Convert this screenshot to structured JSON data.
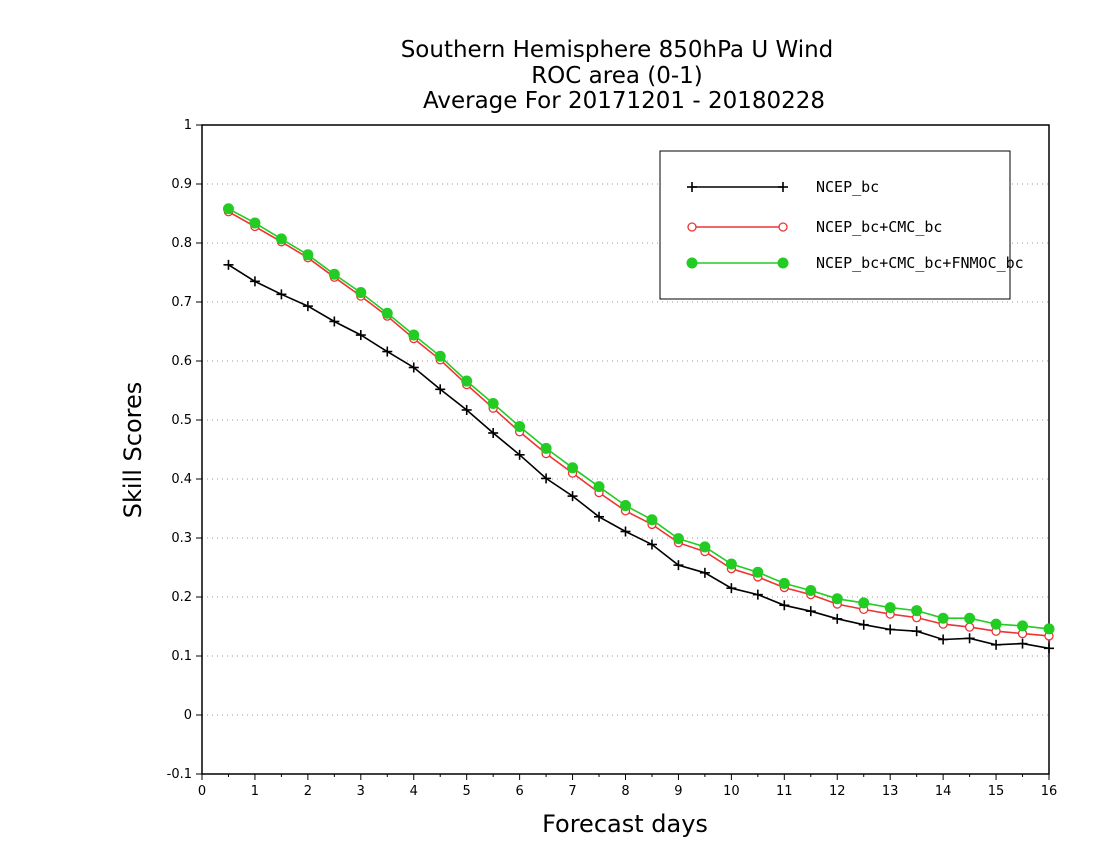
{
  "chart_data": {
    "type": "line",
    "title_lines": [
      "Southern Hemisphere 850hPa U Wind",
      "ROC area (0-1)",
      "Average For 20171201 - 20180228"
    ],
    "xlabel": "Forecast days",
    "ylabel": "Skill Scores",
    "xlim": [
      0,
      16
    ],
    "ylim": [
      -0.1,
      1
    ],
    "x_ticks": [
      "0",
      "1",
      "2",
      "3",
      "4",
      "5",
      "6",
      "7",
      "8",
      "9",
      "10",
      "11",
      "12",
      "13",
      "14",
      "15",
      "16"
    ],
    "y_ticks": [
      "-0.1",
      "0",
      "0.1",
      "0.2",
      "0.3",
      "0.4",
      "0.5",
      "0.6",
      "0.7",
      "0.8",
      "0.9",
      "1"
    ],
    "grid": "horizontal dotted",
    "legend_position": "top-right",
    "x": [
      0.5,
      1,
      1.5,
      2,
      2.5,
      3,
      3.5,
      4,
      4.5,
      5,
      5.5,
      6,
      6.5,
      7,
      7.5,
      8,
      8.5,
      9,
      9.5,
      10,
      10.5,
      11,
      11.5,
      12,
      12.5,
      13,
      13.5,
      14,
      14.5,
      15,
      15.5,
      16
    ],
    "series": [
      {
        "name": "NCEP_bc",
        "color": "#000000",
        "marker": "plus",
        "values": [
          0.763,
          0.735,
          0.713,
          0.693,
          0.667,
          0.644,
          0.616,
          0.589,
          0.552,
          0.517,
          0.478,
          0.441,
          0.401,
          0.371,
          0.336,
          0.311,
          0.289,
          0.254,
          0.241,
          0.215,
          0.204,
          0.186,
          0.176,
          0.163,
          0.153,
          0.145,
          0.142,
          0.128,
          0.13,
          0.119,
          0.121,
          0.113
        ]
      },
      {
        "name": "NCEP_bc+CMC_bc",
        "color": "#ee3333",
        "marker": "open-circle",
        "values": [
          0.853,
          0.828,
          0.802,
          0.775,
          0.742,
          0.71,
          0.676,
          0.638,
          0.602,
          0.56,
          0.52,
          0.48,
          0.443,
          0.41,
          0.377,
          0.346,
          0.323,
          0.292,
          0.277,
          0.248,
          0.234,
          0.216,
          0.204,
          0.188,
          0.179,
          0.171,
          0.165,
          0.154,
          0.149,
          0.142,
          0.138,
          0.134
        ]
      },
      {
        "name": "NCEP_bc+CMC_bc+FNMOC_bc",
        "color": "#22cc22",
        "marker": "filled-circle",
        "values": [
          0.858,
          0.834,
          0.807,
          0.78,
          0.747,
          0.716,
          0.681,
          0.644,
          0.608,
          0.566,
          0.528,
          0.489,
          0.452,
          0.419,
          0.387,
          0.355,
          0.331,
          0.299,
          0.285,
          0.256,
          0.242,
          0.223,
          0.211,
          0.197,
          0.19,
          0.182,
          0.177,
          0.164,
          0.164,
          0.154,
          0.151,
          0.146
        ]
      }
    ]
  }
}
